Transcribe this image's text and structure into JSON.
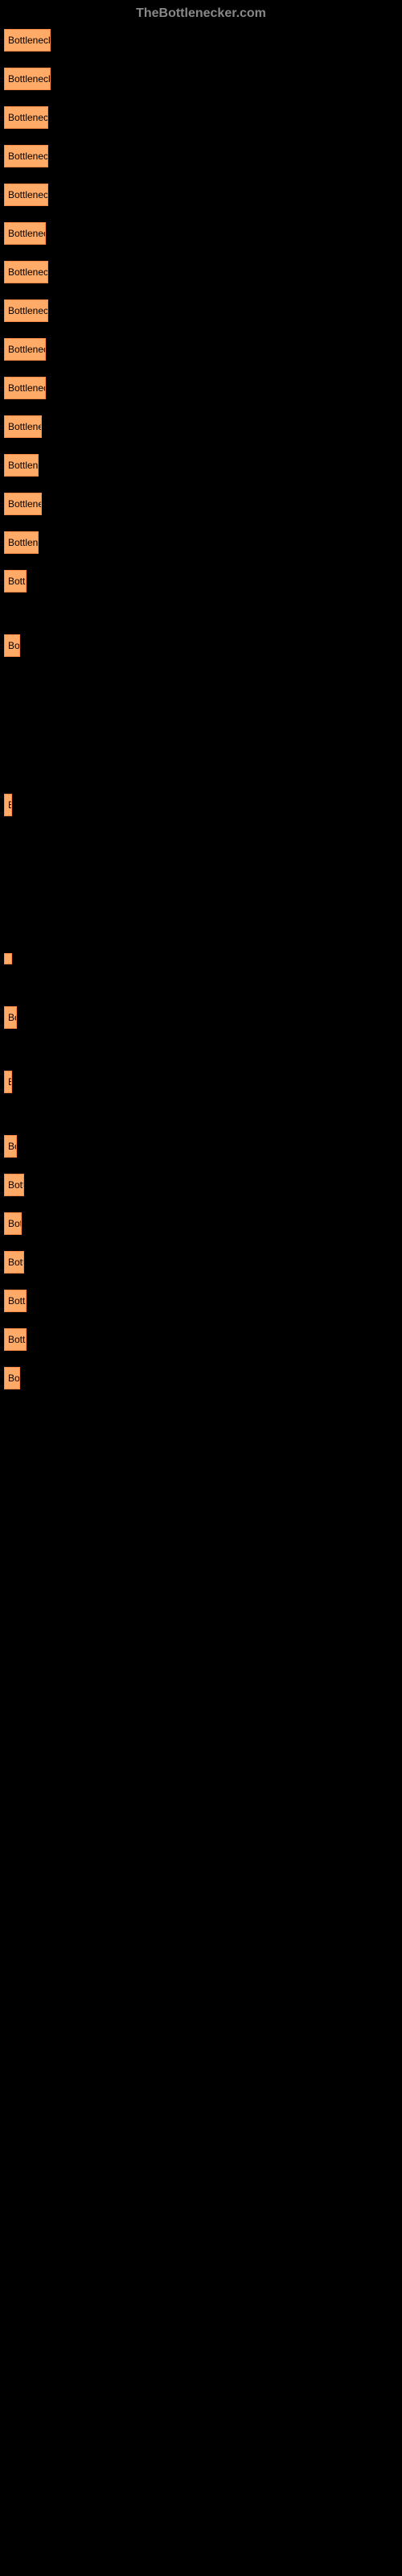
{
  "header": {
    "brand": "TheBottlenecker.com"
  },
  "buttons": [
    {
      "label": "Bottleneck res",
      "width": 58
    },
    {
      "label": "Bottleneck res",
      "width": 58
    },
    {
      "label": "Bottleneck re",
      "width": 55
    },
    {
      "label": "Bottleneck re",
      "width": 55
    },
    {
      "label": "Bottleneck re",
      "width": 55
    },
    {
      "label": "Bottleneck r",
      "width": 52
    },
    {
      "label": "Bottleneck re",
      "width": 55
    },
    {
      "label": "Bottleneck re",
      "width": 55
    },
    {
      "label": "Bottleneck r",
      "width": 52
    },
    {
      "label": "Bottleneck r",
      "width": 52
    },
    {
      "label": "Bottleneck",
      "width": 47
    },
    {
      "label": "Bottlenec",
      "width": 43
    },
    {
      "label": "Bottleneck",
      "width": 47
    },
    {
      "label": "Bottlenec",
      "width": 43
    },
    {
      "label": "Bottle",
      "width": 28
    },
    {
      "label": "Bot",
      "width": 20
    },
    {
      "label": "B",
      "width": 8
    },
    {
      "label": " ",
      "width": 5
    },
    {
      "label": "Bo",
      "width": 16
    },
    {
      "label": "B",
      "width": 8
    },
    {
      "label": "Bo",
      "width": 16
    },
    {
      "label": "Bottl",
      "width": 25
    },
    {
      "label": "Bott",
      "width": 22
    },
    {
      "label": "Bottl",
      "width": 25
    },
    {
      "label": "Bottle",
      "width": 28
    },
    {
      "label": "Bottle",
      "width": 28
    },
    {
      "label": "Bot",
      "width": 20
    }
  ],
  "colors": {
    "button_bg": "#ffaa66",
    "button_border": "#ff8844",
    "button_text": "#000000",
    "page_bg": "#000000",
    "header_text": "#888888"
  },
  "gaps": [
    20,
    20,
    20,
    20,
    20,
    20,
    20,
    20,
    20,
    20,
    20,
    20,
    20,
    20,
    52,
    170,
    170,
    52,
    52,
    52,
    20,
    20,
    20,
    20,
    20,
    20,
    20
  ]
}
